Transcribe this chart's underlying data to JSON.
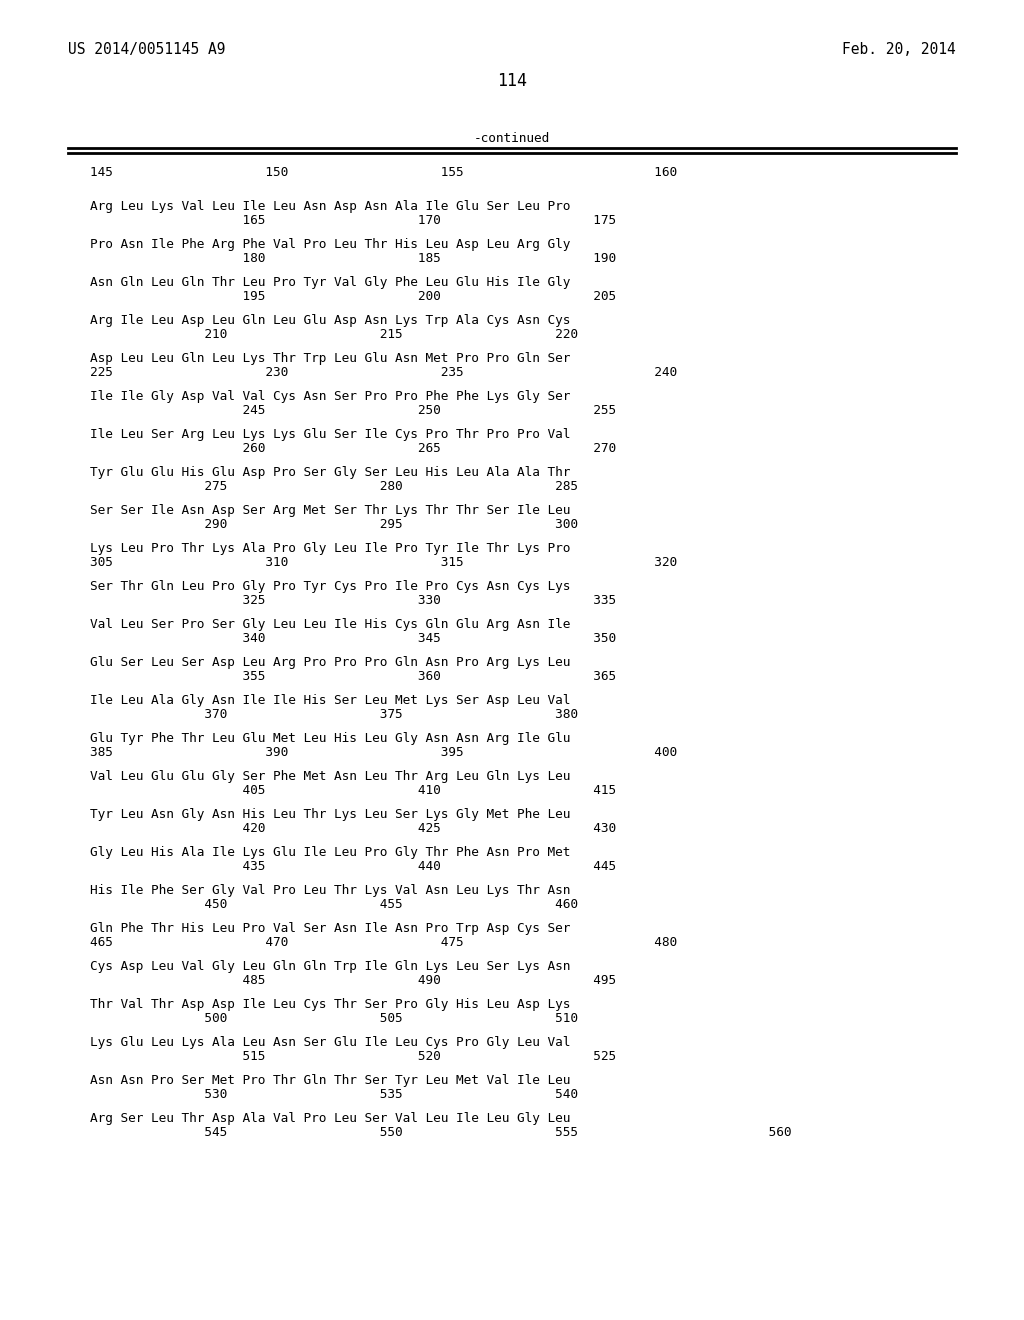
{
  "header_left": "US 2014/0051145 A9",
  "header_right": "Feb. 20, 2014",
  "page_number": "114",
  "continued_label": "-continued",
  "ruler_line": "145                    150                    155                         160",
  "rows": [
    [
      "Arg Leu Lys Val Leu Ile Leu Asn Asp Asn Ala Ile Glu Ser Leu Pro",
      "                    165                    170                    175"
    ],
    [
      "Pro Asn Ile Phe Arg Phe Val Pro Leu Thr His Leu Asp Leu Arg Gly",
      "                    180                    185                    190"
    ],
    [
      "Asn Gln Leu Gln Thr Leu Pro Tyr Val Gly Phe Leu Glu His Ile Gly",
      "                    195                    200                    205"
    ],
    [
      "Arg Ile Leu Asp Leu Gln Leu Glu Asp Asn Lys Trp Ala Cys Asn Cys",
      "               210                    215                    220"
    ],
    [
      "Asp Leu Leu Gln Leu Lys Thr Trp Leu Glu Asn Met Pro Pro Gln Ser",
      "225                    230                    235                         240"
    ],
    [
      "Ile Ile Gly Asp Val Val Cys Asn Ser Pro Pro Phe Phe Lys Gly Ser",
      "                    245                    250                    255"
    ],
    [
      "Ile Leu Ser Arg Leu Lys Lys Glu Ser Ile Cys Pro Thr Pro Pro Val",
      "                    260                    265                    270"
    ],
    [
      "Tyr Glu Glu His Glu Asp Pro Ser Gly Ser Leu His Leu Ala Ala Thr",
      "               275                    280                    285"
    ],
    [
      "Ser Ser Ile Asn Asp Ser Arg Met Ser Thr Lys Thr Thr Ser Ile Leu",
      "               290                    295                    300"
    ],
    [
      "Lys Leu Pro Thr Lys Ala Pro Gly Leu Ile Pro Tyr Ile Thr Lys Pro",
      "305                    310                    315                         320"
    ],
    [
      "Ser Thr Gln Leu Pro Gly Pro Tyr Cys Pro Ile Pro Cys Asn Cys Lys",
      "                    325                    330                    335"
    ],
    [
      "Val Leu Ser Pro Ser Gly Leu Leu Ile His Cys Gln Glu Arg Asn Ile",
      "                    340                    345                    350"
    ],
    [
      "Glu Ser Leu Ser Asp Leu Arg Pro Pro Pro Gln Asn Pro Arg Lys Leu",
      "                    355                    360                    365"
    ],
    [
      "Ile Leu Ala Gly Asn Ile Ile His Ser Leu Met Lys Ser Asp Leu Val",
      "               370                    375                    380"
    ],
    [
      "Glu Tyr Phe Thr Leu Glu Met Leu His Leu Gly Asn Asn Arg Ile Glu",
      "385                    390                    395                         400"
    ],
    [
      "Val Leu Glu Glu Gly Ser Phe Met Asn Leu Thr Arg Leu Gln Lys Leu",
      "                    405                    410                    415"
    ],
    [
      "Tyr Leu Asn Gly Asn His Leu Thr Lys Leu Ser Lys Gly Met Phe Leu",
      "                    420                    425                    430"
    ],
    [
      "Gly Leu His Ala Ile Lys Glu Ile Leu Pro Gly Thr Phe Asn Pro Met",
      "                    435                    440                    445"
    ],
    [
      "His Ile Phe Ser Gly Val Pro Leu Thr Lys Val Asn Leu Lys Thr Asn",
      "               450                    455                    460"
    ],
    [
      "Gln Phe Thr His Leu Pro Val Ser Asn Ile Asn Pro Trp Asp Cys Ser",
      "465                    470                    475                         480"
    ],
    [
      "Cys Asp Leu Val Gly Leu Gln Gln Trp Ile Gln Lys Leu Ser Lys Asn",
      "                    485                    490                    495"
    ],
    [
      "Thr Val Thr Asp Asp Ile Leu Cys Thr Ser Pro Gly His Leu Asp Lys",
      "               500                    505                    510"
    ],
    [
      "Lys Glu Leu Lys Ala Leu Asn Ser Glu Ile Leu Cys Pro Gly Leu Val",
      "                    515                    520                    525"
    ],
    [
      "Asn Asn Pro Ser Met Pro Thr Gln Thr Ser Tyr Leu Met Val Ile Leu",
      "               530                    535                    540"
    ],
    [
      "Arg Ser Leu Thr Asp Ala Val Pro Leu Ser Val Leu Ile Leu Gly Leu",
      "               545                    550                    555                         560"
    ]
  ]
}
